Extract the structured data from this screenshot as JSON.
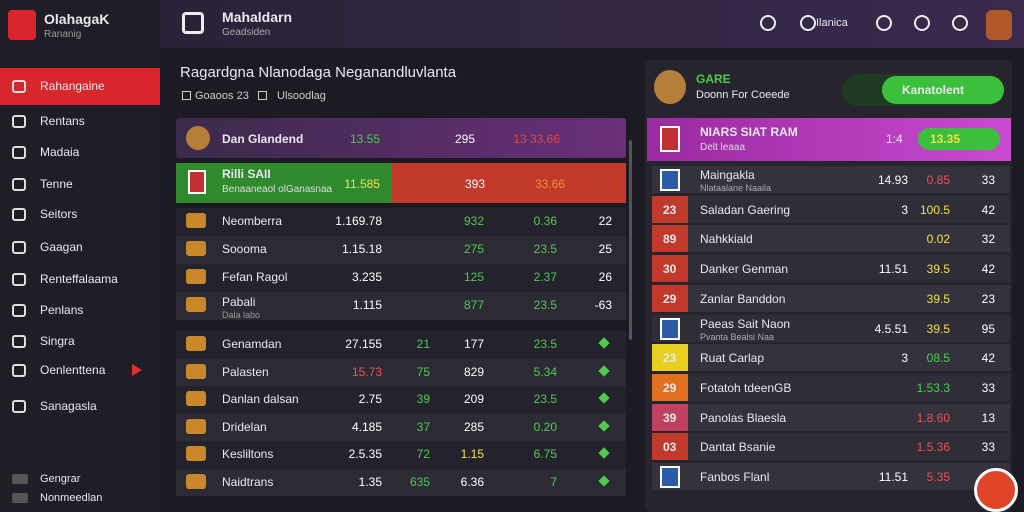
{
  "sidebar": {
    "brand": "OlahagaK",
    "brand_sub": "Rananig",
    "items": [
      "Rahangaine",
      "Rentans",
      "Madaia",
      "Tenne",
      "Seitors",
      "Gaagan",
      "Renteffalaama",
      "Penlans",
      "Singra",
      "Oenlenttena",
      "Sanagasla"
    ],
    "footer": [
      "Gengrar",
      "Nonmeedlan"
    ]
  },
  "topbar": {
    "title": "Mahaldarn",
    "subtitle": "Geadsiden",
    "user": "Ilanica"
  },
  "main": {
    "title": "Ragardgna Nlanodaga Neganandluvlanta",
    "meta": [
      "Goaoos 23",
      "Ulsoodlag"
    ],
    "header_row": {
      "name": "Dan Glandend",
      "cells": [
        "13.55",
        "295",
        "13 33.66"
      ]
    },
    "featured_row": {
      "name": "Rilli SAII",
      "sub": "Benaaneaol olGanasnaa",
      "cells": [
        "11.585",
        "393",
        "33.66"
      ]
    },
    "group1": [
      {
        "name": "Neomberra",
        "cells": [
          "1.169.78",
          "932",
          "0.36",
          "22"
        ]
      },
      {
        "name": "Soooma",
        "cells": [
          "1.15.18",
          "275",
          "23.5",
          "25"
        ]
      },
      {
        "name": "Fefan Ragol",
        "cells": [
          "3.235",
          "125",
          "2.37",
          "26"
        ]
      },
      {
        "name": "Pabali",
        "sub": "Dala labo",
        "cells": [
          "1.115",
          "877",
          "23.5",
          "-63"
        ]
      }
    ],
    "group2": [
      {
        "name": "Genamdan",
        "cells": [
          "27.155",
          "21",
          "177",
          "23.5"
        ]
      },
      {
        "name": "Palasten",
        "cells": [
          "15.73",
          "75",
          "829",
          "5.34"
        ]
      },
      {
        "name": "Danlan dalsan",
        "cells": [
          "2.75",
          "39",
          "209",
          "23.5"
        ]
      },
      {
        "name": "Dridelan",
        "cells": [
          "4.185",
          "37",
          "285",
          "0.20"
        ]
      },
      {
        "name": "Kesliltons",
        "cells": [
          "2.5.35",
          "72",
          "1.15",
          "6.75"
        ]
      },
      {
        "name": "Naidtrans",
        "cells": [
          "1.35",
          "635",
          "6.36",
          "7"
        ]
      }
    ]
  },
  "right": {
    "title": "GARE",
    "subtitle": "Doonn For Coeede",
    "button": "Kanatolent",
    "header_row": {
      "name": "NIARS SIAT RAM",
      "sub": "Delt leaaa",
      "odds": "1:4",
      "pill": "13.35"
    },
    "rows": [
      {
        "name": "Maingakla",
        "sub": "Nlataalane Naaila",
        "cells": [
          "14.93",
          "0.85",
          "33"
        ]
      },
      {
        "badge": "23",
        "name": "Saladan Gaering",
        "cells": [
          "3",
          "100.5",
          "42"
        ]
      },
      {
        "badge": "89",
        "name": "Nahkkiald",
        "cells": [
          "",
          "0.02",
          "32"
        ]
      },
      {
        "badge": "30",
        "name": "Danker Genman",
        "cells": [
          "11.51",
          "39.5",
          "42"
        ]
      },
      {
        "badge": "29",
        "name": "Zanlar Banddon",
        "cells": [
          "",
          "39.5",
          "23"
        ]
      },
      {
        "name": "Paeas Sait Naon",
        "sub": "Pvanta Bealsi Naa",
        "cells": [
          "4.5.51",
          "39.5",
          "95"
        ]
      },
      {
        "badge": "23",
        "name": "Ruat Carlap",
        "cells": [
          "3",
          "08.5",
          "42"
        ]
      },
      {
        "badge": "29",
        "name": "Fotatoh tdeenGB",
        "cells": [
          "",
          "1.53.3",
          "33"
        ]
      },
      {
        "badge": "39",
        "name": "Panolas Blaesla",
        "cells": [
          "",
          "1.8.60",
          "13"
        ]
      },
      {
        "badge": "03",
        "name": "Dantat Bsanie",
        "cells": [
          "",
          "1.5.36",
          "33"
        ]
      },
      {
        "name": "Fanbos Flanl",
        "cells": [
          "11.51",
          "5.35",
          "33"
        ]
      }
    ]
  }
}
